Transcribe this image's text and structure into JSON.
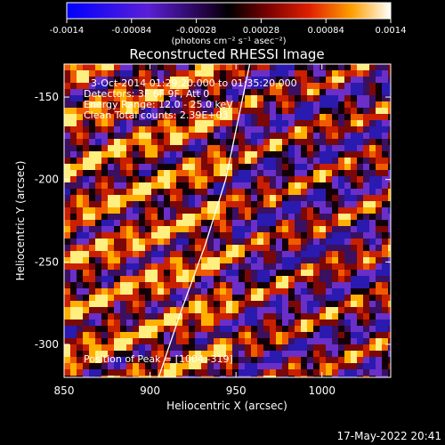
{
  "chart_data": {
    "type": "heatmap",
    "title": "Reconstructed RHESSI Image",
    "xlabel": "Heliocentric X (arcsec)",
    "ylabel": "Heliocentric Y (arcsec)",
    "xlim": [
      850,
      1040
    ],
    "ylim": [
      -320,
      -130
    ],
    "x_ticks": [
      850,
      900,
      950,
      1000
    ],
    "y_ticks": [
      -150,
      -200,
      -250,
      -300
    ],
    "annotations": [
      "3-Oct-2014 01:29:20.000 to 01:35:20.000",
      "Detectors: 3F 6F 9F, Att 0",
      "Energy Range: 12.0 - 25.0 keV",
      "Clean     Total counts: 2.39E+03"
    ],
    "peak_label": "Position of Peak = [1004,-319]",
    "colorbar": {
      "ticks": [
        "-0.0014",
        "-0.00084",
        "-0.00028",
        "0.00028",
        "0.00084",
        "0.0014"
      ],
      "unit_label": "(photons cm⁻² s⁻¹ asec⁻²)",
      "range": [
        -0.0014,
        0.0014
      ]
    },
    "limb_curve": [
      [
        905,
        -320
      ],
      [
        918,
        -280
      ],
      [
        932,
        -240
      ],
      [
        944,
        -200
      ],
      [
        952,
        -160
      ],
      [
        958,
        -130
      ]
    ],
    "colors": {
      "negative_low": "#0000ff",
      "negative_high": "#8a2be2",
      "zero": "#000000",
      "positive_mid": "#e03000",
      "positive_high": "#ffcc00",
      "max": "#ffffff"
    }
  },
  "timestamp": "17-May-2022 20:41"
}
